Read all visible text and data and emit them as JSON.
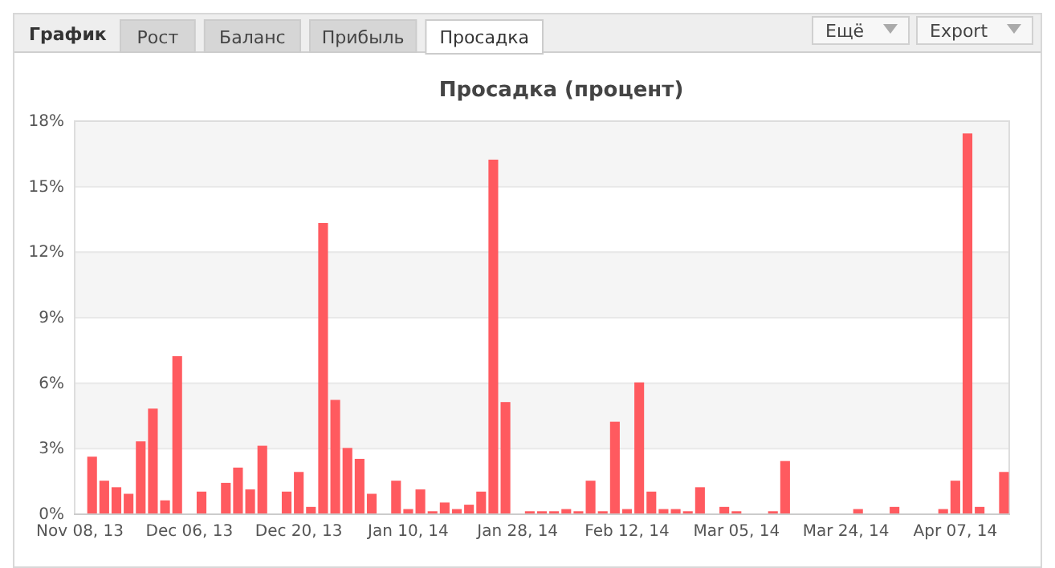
{
  "chart_data": {
    "type": "bar",
    "title": "Просадка (процент)",
    "annotations": [
      "График",
      "Рост",
      "Баланс",
      "Прибыль",
      "Просадка",
      "Ещё",
      "Export"
    ],
    "categories": [
      "Nov 08, 13",
      null,
      null,
      null,
      null,
      null,
      null,
      null,
      null,
      "Dec 06, 13",
      null,
      null,
      null,
      null,
      null,
      null,
      null,
      null,
      "Dec 20, 13",
      null,
      null,
      null,
      null,
      null,
      null,
      null,
      null,
      "Jan 10, 14",
      null,
      null,
      null,
      null,
      null,
      null,
      null,
      null,
      "Jan 28, 14",
      null,
      null,
      null,
      null,
      null,
      null,
      null,
      null,
      "Feb 12, 14",
      null,
      null,
      null,
      null,
      null,
      null,
      null,
      null,
      "Mar 05, 14",
      null,
      null,
      null,
      null,
      null,
      null,
      null,
      null,
      "Mar 24, 14",
      null,
      null,
      null,
      null,
      null,
      null,
      null,
      null,
      "Apr 07, 14",
      null,
      null,
      null,
      null
    ],
    "values": [
      0,
      2.6,
      1.5,
      1.2,
      0.9,
      3.3,
      4.8,
      0.6,
      7.2,
      0,
      1.0,
      0,
      1.4,
      2.1,
      1.1,
      3.1,
      0,
      1.0,
      1.9,
      0.3,
      13.3,
      5.2,
      3.0,
      2.5,
      0.9,
      0,
      1.5,
      0.2,
      1.1,
      0.1,
      0.5,
      0.2,
      0.4,
      1.0,
      16.2,
      5.1,
      0,
      0.1,
      0.1,
      0.1,
      0.2,
      0.1,
      1.5,
      0.1,
      4.2,
      0.2,
      6.0,
      1.0,
      0.2,
      0.2,
      0.1,
      1.2,
      0,
      0.3,
      0.1,
      0,
      0,
      0.1,
      2.4,
      0,
      0,
      0,
      0,
      0,
      0.2,
      0,
      0,
      0.3,
      0,
      0,
      0,
      0.2,
      1.5,
      17.4,
      0.3,
      0,
      1.9
    ],
    "color": "#ff5a5f",
    "ylim": [
      0,
      18
    ],
    "yticks": [
      {
        "value": 0,
        "label": "0%"
      },
      {
        "value": 3,
        "label": "3%"
      },
      {
        "value": 6,
        "label": "6%"
      },
      {
        "value": 9,
        "label": "9%"
      },
      {
        "value": 12,
        "label": "12%"
      },
      {
        "value": 15,
        "label": "15%"
      },
      {
        "value": 18,
        "label": "18%"
      }
    ],
    "grid": "y"
  }
}
